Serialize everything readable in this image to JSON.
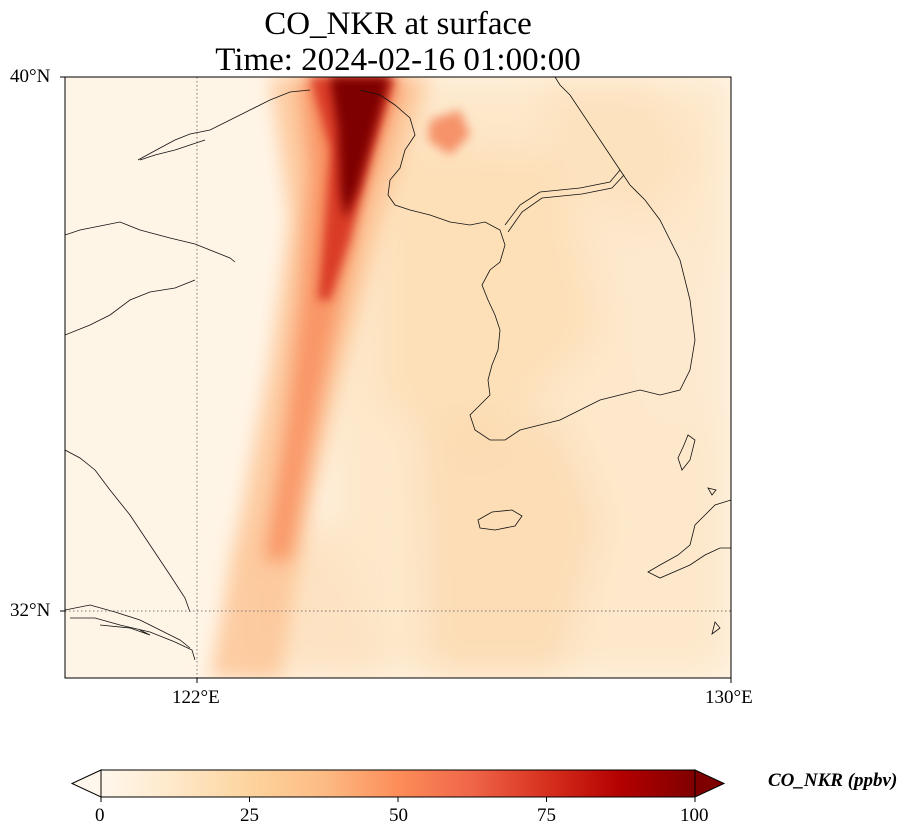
{
  "title": {
    "line1": "CO_NKR at surface",
    "line2": "Time: 2024-02-16 01:00:00"
  },
  "map": {
    "variable": "CO_NKR",
    "level": "surface",
    "time": "2024-02-16 01:00:00",
    "extent": {
      "lon_min": 119.6,
      "lon_max": 130.0,
      "lat_min": 31.0,
      "lat_max": 40.0
    },
    "lat_ticks": [
      {
        "value": 40,
        "label": "40°N"
      },
      {
        "value": 32,
        "label": "32°N"
      }
    ],
    "lon_ticks": [
      {
        "value": 122,
        "label": "122°E"
      },
      {
        "value": 130,
        "label": "130°E"
      }
    ],
    "gridlines": {
      "lat": [
        32
      ],
      "lon": [
        122
      ],
      "style": "dotted"
    },
    "colormap": "OrRd",
    "plume": {
      "description_value_max_ppbv": 100,
      "axis_points": [
        {
          "lon": 124.5,
          "lat": 40.0
        },
        {
          "lon": 124.2,
          "lat": 38.5
        },
        {
          "lon": 123.8,
          "lat": 37.0
        },
        {
          "lon": 123.4,
          "lat": 35.5
        },
        {
          "lon": 123.0,
          "lat": 33.5
        },
        {
          "lon": 122.7,
          "lat": 31.0
        }
      ]
    }
  },
  "colorbar": {
    "label": "CO_NKR (ppbv)",
    "min": 0,
    "max": 100,
    "extend": "both",
    "ticks": [
      {
        "value": 0,
        "label": "0"
      },
      {
        "value": 25,
        "label": "25"
      },
      {
        "value": 50,
        "label": "50"
      },
      {
        "value": 75,
        "label": "75"
      },
      {
        "value": 100,
        "label": "100"
      }
    ],
    "colors": [
      "#fff7ec",
      "#fee8c8",
      "#fdd49e",
      "#fdbb84",
      "#fc8d59",
      "#ef6548",
      "#d7301f",
      "#b30000",
      "#7f0000"
    ]
  }
}
